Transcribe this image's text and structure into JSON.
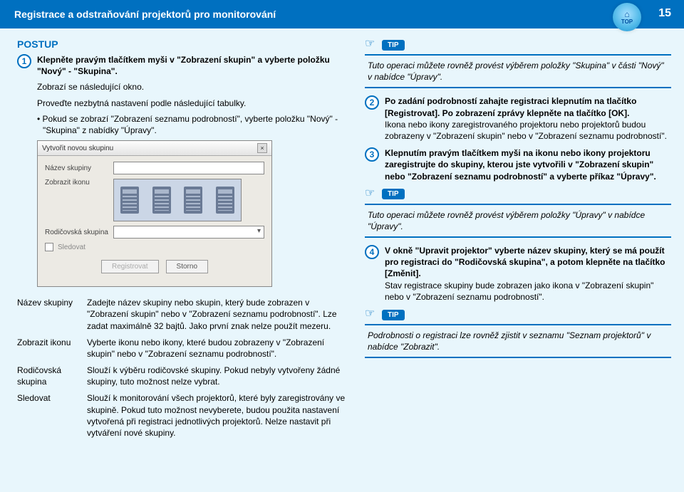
{
  "header": {
    "title": "Registrace a odstraňování projektorů pro monitorování",
    "top_label": "TOP",
    "page_number": "15"
  },
  "postup_label": "POSTUP",
  "left": {
    "step1_bold": "Klepněte pravým tlačítkem myši v \"Zobrazení skupin\" a vyberte položku \"Nový\" - \"Skupina\".",
    "step1_line2": "Zobrazí se následující okno.",
    "step1_line3": "Proveďte nezbytná nastavení podle následující tabulky.",
    "step1_bullet": "• Pokud se zobrazí \"Zobrazení seznamu podrobností\", vyberte položku \"Nový\" - \"Skupina\" z nabídky \"Úpravy\"."
  },
  "dialog": {
    "title": "Vytvořit novou skupinu",
    "field1": "Název skupiny",
    "field2": "Zobrazit ikonu",
    "field3": "Rodičovská skupina",
    "checkbox": "Sledovat",
    "btn_register": "Registrovat",
    "btn_cancel": "Storno"
  },
  "defs": {
    "r1_term": "Název skupiny",
    "r1_desc": "Zadejte název skupiny nebo skupin, který bude zobrazen v \"Zobrazení skupin\" nebo v \"Zobrazení seznamu podrobností\". Lze zadat maximálně 32 bajtů. Jako první znak nelze použít mezeru.",
    "r2_term": "Zobrazit ikonu",
    "r2_desc": "Vyberte ikonu nebo ikony, které budou zobrazeny v \"Zobrazení skupin\" nebo v \"Zobrazení seznamu podrobností\".",
    "r3_term": "Rodičovská skupina",
    "r3_desc": "Slouží k výběru rodičovské skupiny. Pokud nebyly vytvořeny žádné skupiny, tuto možnost nelze vybrat.",
    "r4_term": "Sledovat",
    "r4_desc": "Slouží k monitorování všech projektorů, které byly zaregistrovány ve skupině. Pokud tuto možnost nevyberete, budou použita nastavení vytvořená při registraci jednotlivých projektorů. Nelze nastavit při vytváření nové skupiny."
  },
  "right": {
    "tip_label": "TIP",
    "tip1": "Tuto operaci můžete rovněž provést výběrem položky \"Skupina\" v části \"Nový\" v nabídce \"Úpravy\".",
    "step2_bold": "Po zadání podrobností zahajte registraci klepnutím na tlačítko [Registrovat]. Po zobrazení zprávy klepněte na tlačítko [OK].",
    "step2_rest": "Ikona nebo ikony zaregistrovaného projektoru nebo projektorů budou zobrazeny v \"Zobrazení skupin\" nebo v \"Zobrazení seznamu podrobností\".",
    "step3_bold": "Klepnutím pravým tlačítkem myši na ikonu nebo ikony projektoru zaregistrujte do skupiny, kterou jste vytvořili v \"Zobrazení skupin\" nebo \"Zobrazení seznamu podrobností\" a vyberte příkaz \"Úpravy\".",
    "tip2": "Tuto operaci můžete rovněž provést výběrem položky \"Úpravy\" v nabídce \"Úpravy\".",
    "step4_bold": "V okně \"Upravit projektor\" vyberte název skupiny, který se má použít pro registraci do \"Rodičovská skupina\", a potom klepněte na tlačítko [Změnit].",
    "step4_rest": "Stav registrace skupiny bude zobrazen jako ikona v \"Zobrazení skupin\" nebo v \"Zobrazení seznamu podrobností\".",
    "tip3": "Podrobnosti o registraci lze rovněž zjistit v seznamu \"Seznam projektorů\" v nabídce \"Zobrazit\"."
  },
  "colors": {
    "accent": "#0070c0",
    "bg": "#e8f6fc"
  }
}
